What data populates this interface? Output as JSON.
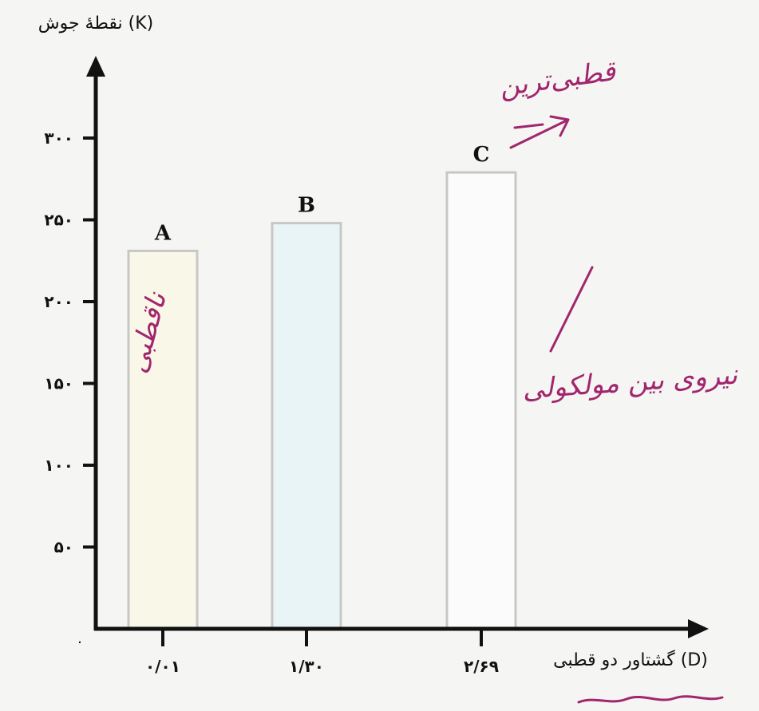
{
  "chart_data": {
    "type": "bar",
    "ylabel": "نقطهٔ جوش (K)",
    "xlabel": "گشتاور دو قطبی (D)",
    "origin_label": "۰",
    "ylim": [
      0,
      350
    ],
    "yticks": [
      {
        "value": 50,
        "label": "۵۰"
      },
      {
        "value": 100,
        "label": "۱۰۰"
      },
      {
        "value": 150,
        "label": "۱۵۰"
      },
      {
        "value": 200,
        "label": "۲۰۰"
      },
      {
        "value": 250,
        "label": "۲۵۰"
      },
      {
        "value": 300,
        "label": "۳۰۰"
      }
    ],
    "categories": [
      "۰/۰۱",
      "۱/۳۰",
      "۲/۶۹"
    ],
    "dipole_values": [
      0.01,
      1.3,
      2.69
    ],
    "bar_labels": [
      "A",
      "B",
      "C"
    ],
    "values": [
      231,
      248,
      279
    ],
    "bar_colors": [
      "#f9f8e8",
      "#e9f4f6",
      "#fbfbfb"
    ],
    "bar_edge_color": "#c7c7c7",
    "grid": false,
    "annotations": [
      {
        "text": "قطبی‌ترین"
      },
      {
        "text": "ناقطبی"
      },
      {
        "text": "نیروی بین مولکولی"
      }
    ]
  },
  "colors": {
    "axis": "#111111",
    "annotation": "#a1266d",
    "background": "#f5f5f4"
  }
}
